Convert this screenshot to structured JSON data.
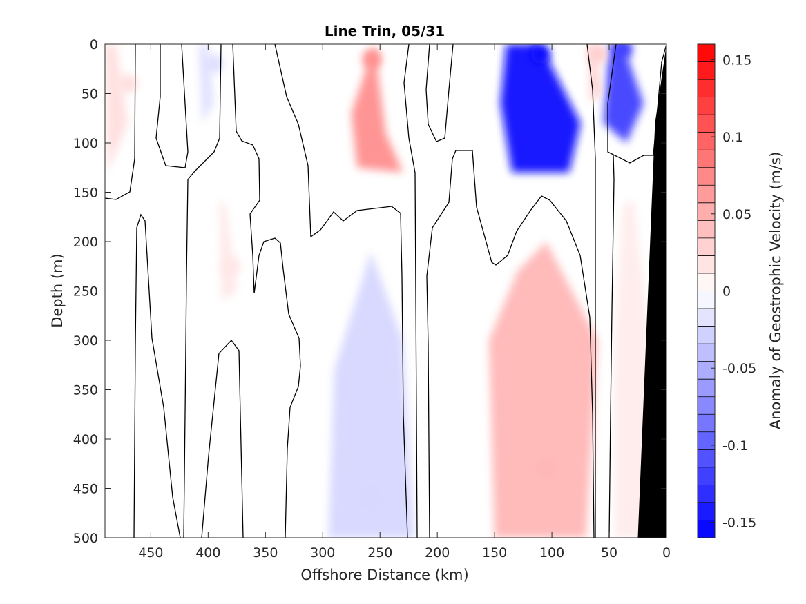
{
  "chart_data": {
    "type": "heatmap",
    "title": "Line Trin, 05/31",
    "xlabel": "Offshore Distance (km)",
    "ylabel": "Depth (m)",
    "colorbar_label": "Anomaly of Geostrophic Velocity (m/s)",
    "xlim": [
      490,
      0
    ],
    "ylim": [
      0,
      500
    ],
    "clim": [
      -0.16,
      0.16
    ],
    "x_ticks": [
      450,
      400,
      350,
      300,
      250,
      200,
      150,
      100,
      50,
      0
    ],
    "y_ticks": [
      0,
      50,
      100,
      150,
      200,
      250,
      300,
      350,
      400,
      450,
      500
    ],
    "colorbar_ticks": [
      0.15,
      0.1,
      0.05,
      0,
      -0.05,
      -0.1,
      -0.15
    ],
    "colorbar_tick_labels": [
      "0.15",
      "0.1",
      "0.05",
      "0",
      "-0.05",
      "-0.1",
      "-0.15"
    ],
    "colorbar_levels": 28,
    "colormap": {
      "positive": "#ff0000",
      "negative": "#0000ff",
      "zero": "#ffffff"
    },
    "zero_contour_color": "#000000",
    "bathymetry_color": "#000000",
    "bathymetry": [
      [
        0,
        0
      ],
      [
        10,
        80
      ],
      [
        25,
        500
      ],
      [
        0,
        500
      ]
    ],
    "features": [
      {
        "x": 257,
        "depth": 15,
        "value": 0.07
      },
      {
        "x": 110,
        "depth": 10,
        "value": -0.15
      },
      {
        "x": 38,
        "depth": 5,
        "value": -0.12
      },
      {
        "x": 105,
        "depth": 430,
        "value": 0.045
      },
      {
        "x": 258,
        "depth": 460,
        "value": -0.025
      },
      {
        "x": 470,
        "depth": 40,
        "value": 0.02
      },
      {
        "x": 395,
        "depth": 20,
        "value": -0.02
      },
      {
        "x": 380,
        "depth": 225,
        "value": 0.015
      },
      {
        "x": 60,
        "depth": 10,
        "value": 0.03
      },
      {
        "x": 30,
        "depth": 350,
        "value": 0.012
      }
    ]
  }
}
